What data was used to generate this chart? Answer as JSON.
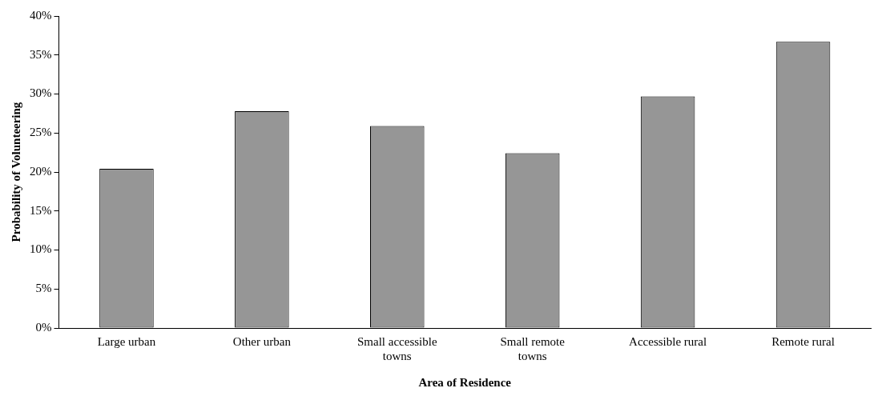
{
  "chart_data": {
    "type": "bar",
    "xlabel": "Area of Residence",
    "ylabel": "Probability of Volunteering",
    "categories": [
      "Large urban",
      "Other urban",
      "Small accessible towns",
      "Small remote towns",
      "Accessible rural",
      "Remote rural"
    ],
    "values": [
      20.4,
      27.8,
      25.9,
      22.4,
      29.7,
      36.7
    ],
    "color": "#969696",
    "ylim": [
      0,
      40
    ],
    "yticks": [
      {
        "value": 0,
        "label": "0%"
      },
      {
        "value": 5,
        "label": "5%"
      },
      {
        "value": 10,
        "label": "10%"
      },
      {
        "value": 15,
        "label": "15%"
      },
      {
        "value": 20,
        "label": "20%"
      },
      {
        "value": 25,
        "label": "25%"
      },
      {
        "value": 30,
        "label": "30%"
      },
      {
        "value": 35,
        "label": "35%"
      },
      {
        "value": 40,
        "label": "40%"
      }
    ],
    "grid": false,
    "legend": false
  }
}
